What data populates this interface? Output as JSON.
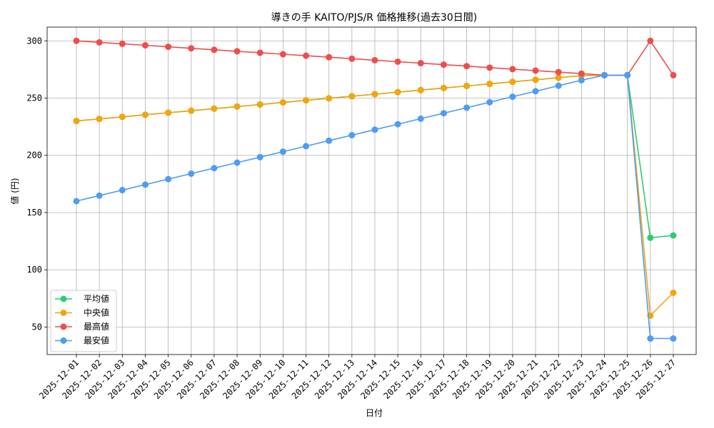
{
  "chart_data": {
    "type": "line",
    "title": "導きの手 KAITO/PJS/R 価格推移(過去30日間)",
    "xlabel": "日付",
    "ylabel": "値 (円)",
    "ylim": [
      26,
      312
    ],
    "yticks": [
      50,
      100,
      150,
      200,
      250,
      300
    ],
    "grid": true,
    "legend_position": "lower-left",
    "categories": [
      "2025-12-01",
      "2025-12-02",
      "2025-12-03",
      "2025-12-04",
      "2025-12-05",
      "2025-12-06",
      "2025-12-07",
      "2025-12-08",
      "2025-12-09",
      "2025-12-10",
      "2025-12-11",
      "2025-12-12",
      "2025-12-13",
      "2025-12-14",
      "2025-12-15",
      "2025-12-16",
      "2025-12-17",
      "2025-12-18",
      "2025-12-19",
      "2025-12-20",
      "2025-12-21",
      "2025-12-22",
      "2025-12-23",
      "2025-12-24",
      "2025-12-25",
      "2025-12-26",
      "2025-12-27"
    ],
    "series": [
      {
        "name": "平均値",
        "color": "#2ecc71",
        "values": [
          230,
          231.8,
          233.6,
          235.4,
          237.2,
          239,
          240.8,
          242.6,
          244.4,
          246.2,
          248,
          249.8,
          251.6,
          253.4,
          255.2,
          257,
          258.8,
          260.6,
          262.4,
          264.2,
          266,
          267.8,
          269.6,
          270,
          270,
          128,
          130
        ]
      },
      {
        "name": "中央値",
        "color": "#f5a40c",
        "values": [
          230,
          231.8,
          233.6,
          235.4,
          237.2,
          239,
          240.8,
          242.6,
          244.4,
          246.2,
          248,
          249.8,
          251.6,
          253.4,
          255.2,
          257,
          258.8,
          260.6,
          262.4,
          264.2,
          266,
          267.8,
          269.6,
          270,
          270,
          60,
          80
        ]
      },
      {
        "name": "最高値",
        "color": "#ef4d4d",
        "values": [
          300,
          298.7,
          297.4,
          296.1,
          294.8,
          293.5,
          292.2,
          290.9,
          289.6,
          288.3,
          287,
          285.7,
          284.4,
          283.1,
          281.8,
          280.5,
          279.2,
          277.9,
          276.6,
          275.3,
          274,
          272.7,
          271.4,
          270,
          270,
          300,
          270
        ]
      },
      {
        "name": "最安値",
        "color": "#4d9cf5",
        "values": [
          160,
          164.8,
          169.6,
          174.4,
          179.2,
          184,
          188.8,
          193.6,
          198.4,
          203.2,
          208,
          212.8,
          217.6,
          222.4,
          227.2,
          232,
          236.8,
          241.6,
          246.4,
          251.2,
          256,
          260.8,
          265.6,
          270,
          270,
          40,
          40
        ]
      }
    ]
  }
}
